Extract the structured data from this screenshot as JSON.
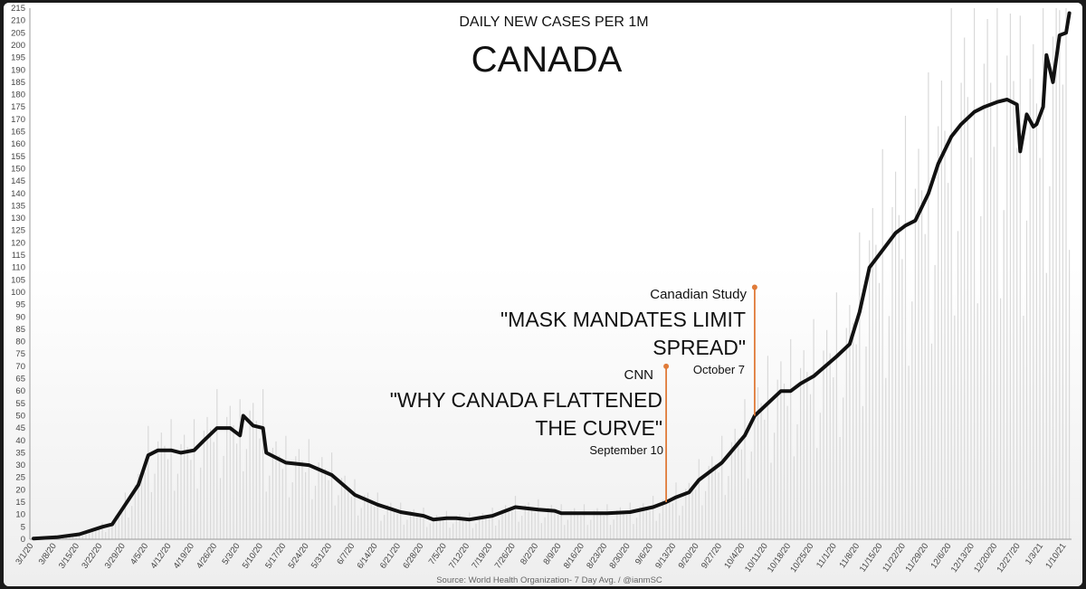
{
  "chart_data": {
    "type": "line",
    "title": "DAILY NEW CASES PER 1M",
    "subtitle": "CANADA",
    "source": "Source: World Health Organization- 7 Day Avg. / @ianmSC",
    "ylim": [
      0,
      215
    ],
    "y_ticks": [
      0,
      5,
      10,
      15,
      20,
      25,
      30,
      35,
      40,
      45,
      50,
      55,
      60,
      65,
      70,
      75,
      80,
      85,
      90,
      95,
      100,
      105,
      110,
      115,
      120,
      125,
      130,
      135,
      140,
      145,
      150,
      155,
      160,
      165,
      170,
      175,
      180,
      185,
      190,
      195,
      200,
      205,
      210,
      215
    ],
    "x_ticks": [
      "3/1/20",
      "3/8/20",
      "3/15/20",
      "3/22/20",
      "3/29/20",
      "4/5/20",
      "4/12/20",
      "4/19/20",
      "4/26/20",
      "5/3/20",
      "5/10/20",
      "5/17/20",
      "5/24/20",
      "5/31/20",
      "6/7/20",
      "6/14/20",
      "6/21/20",
      "6/28/20",
      "7/5/20",
      "7/12/20",
      "7/19/20",
      "7/26/20",
      "8/2/20",
      "8/9/20",
      "8/16/20",
      "8/23/20",
      "8/30/20",
      "9/6/20",
      "9/13/20",
      "9/20/20",
      "9/27/20",
      "10/4/20",
      "10/11/20",
      "10/18/20",
      "10/25/20",
      "11/1/20",
      "11/8/20",
      "11/15/20",
      "11/22/20",
      "11/29/20",
      "12/6/20",
      "12/13/20",
      "12/20/20",
      "12/27/20",
      "1/3/21",
      "1/10/21"
    ],
    "grid": false,
    "series": [
      {
        "name": "",
        "color": "#111111",
        "x": [
          "3/1/20",
          "3/8/20",
          "3/15/20",
          "3/22/20",
          "3/25/20",
          "3/29/20",
          "4/2/20",
          "4/5/20",
          "4/8/20",
          "4/12/20",
          "4/15/20",
          "4/19/20",
          "4/22/20",
          "4/26/20",
          "4/30/20",
          "5/3/20",
          "5/4/20",
          "5/7/20",
          "5/10/20",
          "5/11/20",
          "5/17/20",
          "5/24/20",
          "5/31/20",
          "6/7/20",
          "6/14/20",
          "6/21/20",
          "6/28/20",
          "7/1/20",
          "7/5/20",
          "7/8/20",
          "7/12/20",
          "7/19/20",
          "7/26/20",
          "8/2/20",
          "8/7/20",
          "8/9/20",
          "8/16/20",
          "8/23/20",
          "8/30/20",
          "9/6/20",
          "9/10/20",
          "9/13/20",
          "9/17/20",
          "9/20/20",
          "9/27/20",
          "10/4/20",
          "10/7/20",
          "10/11/20",
          "10/15/20",
          "10/18/20",
          "10/21/20",
          "10/25/20",
          "11/1/20",
          "11/5/20",
          "11/8/20",
          "11/11/20",
          "11/15/20",
          "11/19/20",
          "11/22/20",
          "11/25/20",
          "11/29/20",
          "12/2/20",
          "12/6/20",
          "12/9/20",
          "12/13/20",
          "12/16/20",
          "12/20/20",
          "12/23/20",
          "12/26/20",
          "12/27/20",
          "12/29/20",
          "12/31/20",
          "1/1/21",
          "1/3/21",
          "1/4/21",
          "1/6/21",
          "1/8/21",
          "1/10/21",
          "1/11/21"
        ],
        "values": [
          0.3,
          0.8,
          2,
          5,
          6,
          14,
          22,
          34,
          36,
          36,
          35,
          36,
          40,
          45,
          45,
          42,
          50,
          46,
          45,
          35,
          31,
          30,
          26,
          18,
          14,
          11,
          9.5,
          8,
          8.5,
          8.5,
          8,
          9.5,
          13,
          12,
          11.5,
          10.5,
          10.5,
          10.5,
          11,
          13,
          15,
          17,
          19,
          24,
          31,
          42,
          50,
          55,
          60,
          60,
          63,
          66,
          74,
          79,
          92,
          110,
          117,
          124,
          127,
          129,
          140,
          152,
          163,
          168,
          173,
          175,
          177,
          178,
          176,
          157,
          172,
          167,
          168,
          175,
          196,
          185,
          204,
          205,
          213
        ]
      }
    ],
    "annotations": [
      {
        "source": "CNN",
        "headline_line1": "\"WHY CANADA FLATTENED",
        "headline_line2": "THE CURVE\"",
        "date": "September 10",
        "color": "#E07B39"
      },
      {
        "source": "Canadian Study",
        "headline_line1": "\"MASK MANDATES LIMIT",
        "headline_line2": "SPREAD\"",
        "date": "October 7",
        "color": "#E07B39"
      }
    ]
  }
}
